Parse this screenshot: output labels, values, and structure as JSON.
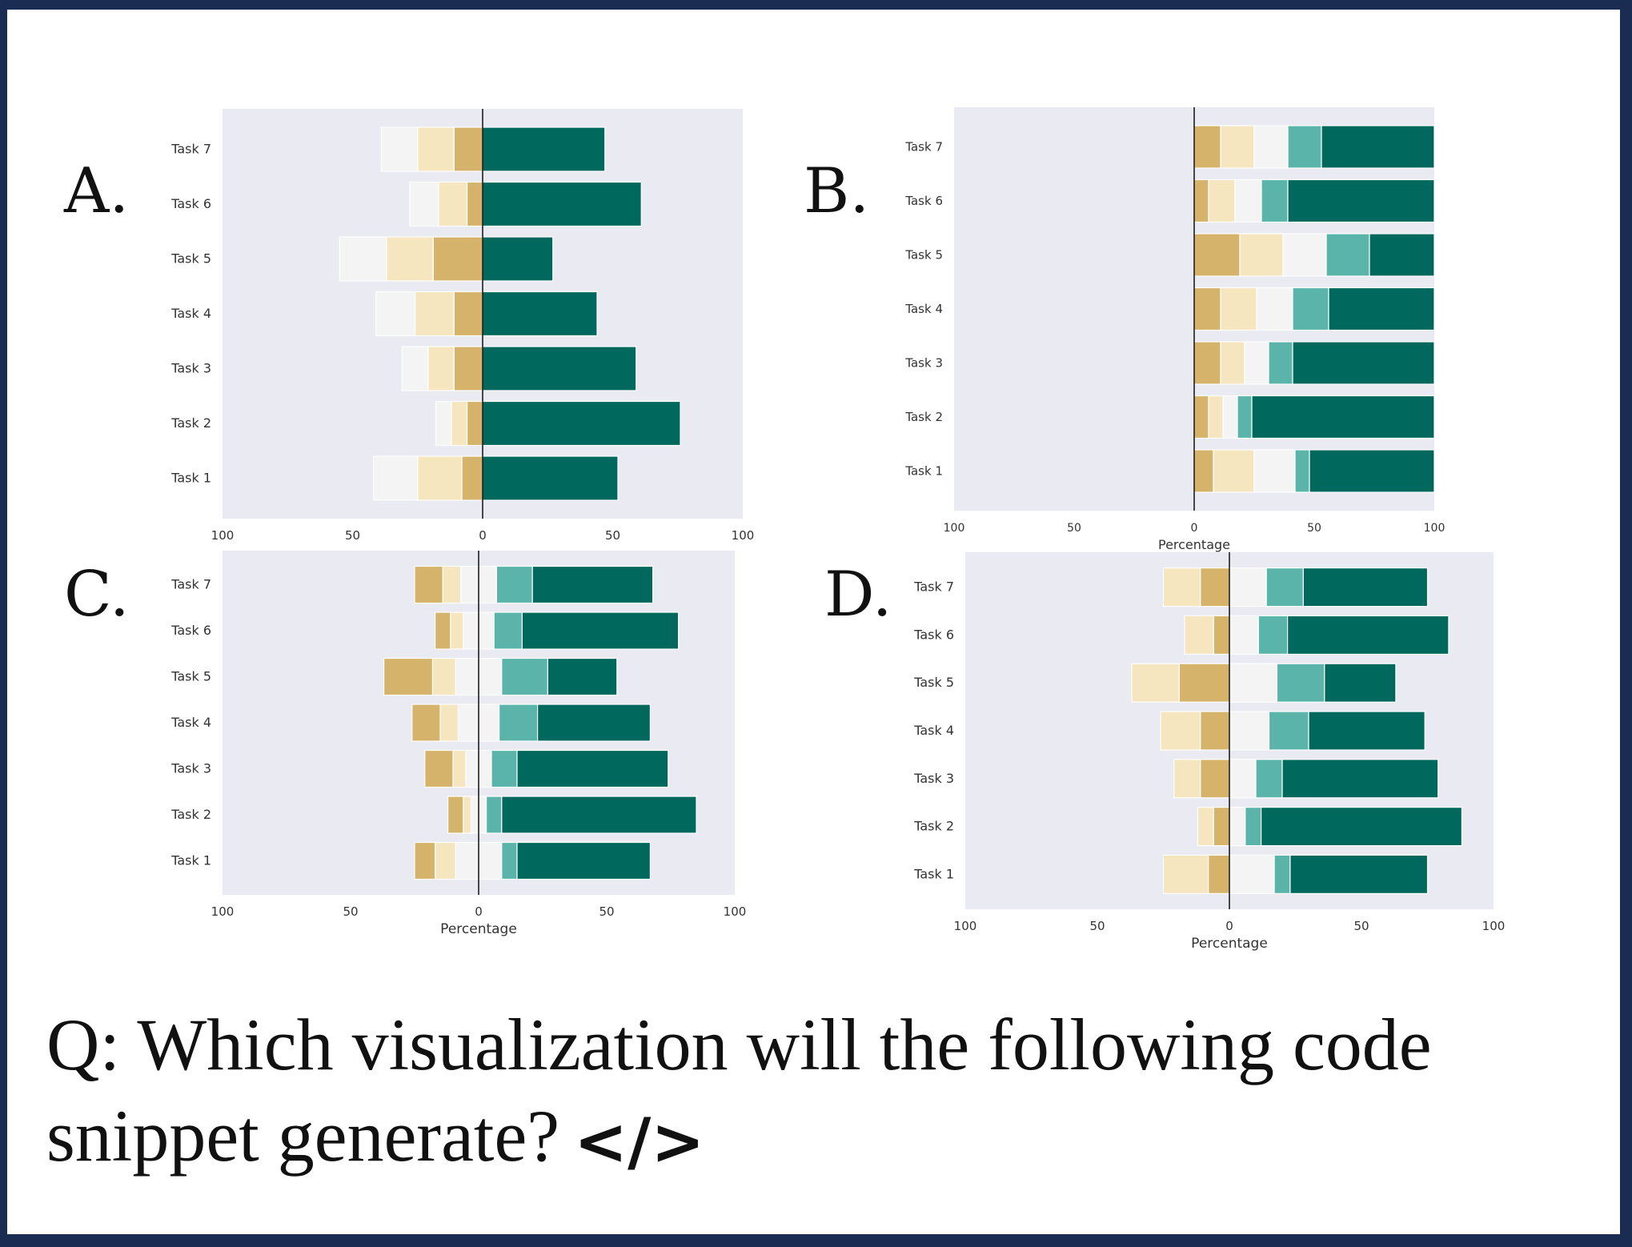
{
  "panels": [
    {
      "letter": "A.",
      "xlabel": ""
    },
    {
      "letter": "B.",
      "xlabel": "Percentage"
    },
    {
      "letter": "C.",
      "xlabel": "Percentage"
    },
    {
      "letter": "D.",
      "xlabel": "Percentage"
    }
  ],
  "question": {
    "text": "Q: Which visualization will the following code snippet generate?",
    "icon": "code-icon",
    "icon_glyph": "</>"
  },
  "colors": {
    "plot_bg": "#eaeaf2",
    "dark_gold": "#d6b36a",
    "light_gold": "#f5e6c0",
    "neutral": "#f4f4f4",
    "light_teal": "#5ab4aa",
    "dark_teal": "#00685c"
  },
  "chart_data": [
    {
      "panel": "A.",
      "type": "bar",
      "categories": [
        "Task 1",
        "Task 2",
        "Task 3",
        "Task 4",
        "Task 5",
        "Task 6",
        "Task 7"
      ],
      "xlim": [
        -100,
        100
      ],
      "xticks": [
        "100",
        "50",
        "0",
        "50",
        "100"
      ],
      "left_series": [
        {
          "color": "dark_gold",
          "values": [
            8,
            6,
            11,
            11,
            19,
            6,
            11
          ]
        },
        {
          "color": "light_gold",
          "values": [
            17,
            6,
            10,
            15,
            18,
            11,
            14
          ]
        },
        {
          "color": "neutral",
          "values": [
            17,
            6,
            10,
            15,
            18,
            11,
            14
          ]
        }
      ],
      "right_series": [
        {
          "color": "dark_teal",
          "values": [
            52,
            76,
            59,
            44,
            27,
            61,
            47
          ]
        }
      ]
    },
    {
      "panel": "B.",
      "type": "bar",
      "categories": [
        "Task 1",
        "Task 2",
        "Task 3",
        "Task 4",
        "Task 5",
        "Task 6",
        "Task 7"
      ],
      "xlim": [
        -100,
        100
      ],
      "xticks": [
        "100",
        "50",
        "0",
        "50",
        "100"
      ],
      "right_series": [
        {
          "color": "dark_gold",
          "values": [
            8,
            6,
            11,
            11,
            19,
            6,
            11
          ]
        },
        {
          "color": "light_gold",
          "values": [
            17,
            6,
            10,
            15,
            18,
            11,
            14
          ]
        },
        {
          "color": "neutral",
          "values": [
            17,
            6,
            10,
            15,
            18,
            11,
            14
          ]
        },
        {
          "color": "light_teal",
          "values": [
            6,
            6,
            10,
            15,
            18,
            11,
            14
          ]
        },
        {
          "color": "dark_teal",
          "values": [
            52,
            76,
            59,
            44,
            27,
            61,
            47
          ]
        }
      ]
    },
    {
      "panel": "C.",
      "type": "bar",
      "categories": [
        "Task 1",
        "Task 2",
        "Task 3",
        "Task 4",
        "Task 5",
        "Task 6",
        "Task 7"
      ],
      "xlim": [
        -100,
        100
      ],
      "xticks": [
        "100",
        "50",
        "0",
        "50",
        "100"
      ],
      "left_series": [
        {
          "color": "neutral",
          "values": [
            9,
            3,
            5,
            8,
            9,
            6,
            7
          ]
        },
        {
          "color": "light_gold",
          "values": [
            8,
            3,
            5,
            7,
            9,
            5,
            7
          ]
        },
        {
          "color": "dark_gold",
          "values": [
            8,
            6,
            11,
            11,
            19,
            6,
            11
          ]
        }
      ],
      "right_series": [
        {
          "color": "neutral",
          "values": [
            9,
            3,
            5,
            8,
            9,
            6,
            7
          ]
        },
        {
          "color": "light_teal",
          "values": [
            6,
            6,
            10,
            15,
            18,
            11,
            14
          ]
        },
        {
          "color": "dark_teal",
          "values": [
            52,
            76,
            59,
            44,
            27,
            61,
            47
          ]
        }
      ]
    },
    {
      "panel": "D.",
      "type": "bar",
      "categories": [
        "Task 1",
        "Task 2",
        "Task 3",
        "Task 4",
        "Task 5",
        "Task 6",
        "Task 7"
      ],
      "xlim": [
        -100,
        100
      ],
      "xticks": [
        "100",
        "50",
        "0",
        "50",
        "100"
      ],
      "left_series": [
        {
          "color": "dark_gold",
          "values": [
            8,
            6,
            11,
            11,
            19,
            6,
            11
          ]
        },
        {
          "color": "light_gold",
          "values": [
            17,
            6,
            10,
            15,
            18,
            11,
            14
          ]
        }
      ],
      "right_series": [
        {
          "color": "neutral",
          "values": [
            17,
            6,
            10,
            15,
            18,
            11,
            14
          ]
        },
        {
          "color": "light_teal",
          "values": [
            6,
            6,
            10,
            15,
            18,
            11,
            14
          ]
        },
        {
          "color": "dark_teal",
          "values": [
            52,
            76,
            59,
            44,
            27,
            61,
            47
          ]
        }
      ]
    }
  ]
}
